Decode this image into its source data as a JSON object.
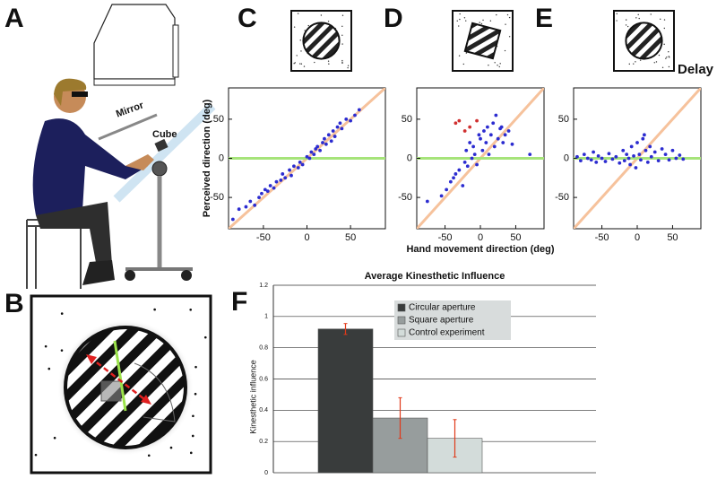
{
  "figure": {
    "panel_a": "A",
    "panel_b": "B",
    "mirror": "Mirror",
    "cube": "Cube"
  },
  "chart_data": [
    {
      "type": "scatter",
      "panel": "C",
      "ylabel": "Perceived direction (deg)",
      "xlim": [
        -90,
        90
      ],
      "ylim": [
        -90,
        90
      ],
      "xticks": [
        -50,
        0,
        50
      ],
      "yticks": [
        -50,
        0,
        50
      ],
      "reference_lines": [
        {
          "slope": 1,
          "intercept": 0,
          "color": "#f6c29c"
        },
        {
          "slope": 0,
          "intercept": 0,
          "color": "#a6e47a"
        }
      ],
      "series": [
        {
          "color": "#2c2cd0",
          "x": [
            -85,
            -78,
            -70,
            -65,
            -60,
            -55,
            -52,
            -48,
            -45,
            -42,
            -38,
            -35,
            -30,
            -28,
            -25,
            -20,
            -18,
            -15,
            -10,
            -8,
            -5,
            0,
            3,
            5,
            8,
            10,
            12,
            15,
            18,
            20,
            22,
            25,
            28,
            30,
            32,
            35,
            38,
            40,
            45,
            50,
            55,
            60
          ],
          "y": [
            -78,
            -65,
            -62,
            -55,
            -60,
            -50,
            -45,
            -40,
            -42,
            -35,
            -38,
            -30,
            -28,
            -20,
            -25,
            -15,
            -22,
            -10,
            -12,
            -5,
            -8,
            2,
            0,
            8,
            5,
            12,
            15,
            10,
            20,
            25,
            18,
            30,
            22,
            35,
            28,
            40,
            45,
            38,
            50,
            48,
            55,
            62
          ]
        }
      ]
    },
    {
      "type": "scatter",
      "panel": "D",
      "xlabel": "Hand movement direction (deg)",
      "xlim": [
        -90,
        90
      ],
      "ylim": [
        -90,
        90
      ],
      "xticks": [
        -50,
        0,
        50
      ],
      "yticks": [
        -50,
        0,
        50
      ],
      "reference_lines": [
        {
          "slope": 1,
          "intercept": 0,
          "color": "#f6c29c"
        },
        {
          "slope": 0,
          "intercept": 0,
          "color": "#a6e47a"
        }
      ],
      "series": [
        {
          "color": "#2c2cd0",
          "x": [
            -75,
            -55,
            -48,
            -42,
            -38,
            -35,
            -30,
            -25,
            -22,
            -20,
            -18,
            -15,
            -12,
            -10,
            -8,
            -5,
            -2,
            0,
            3,
            5,
            8,
            10,
            12,
            15,
            18,
            20,
            22,
            25,
            28,
            30,
            32,
            35,
            40,
            45,
            70
          ],
          "y": [
            -55,
            -48,
            -40,
            -30,
            -25,
            -20,
            -15,
            -35,
            -5,
            10,
            -10,
            20,
            0,
            15,
            5,
            -8,
            30,
            25,
            10,
            35,
            20,
            40,
            5,
            30,
            45,
            15,
            55,
            25,
            38,
            40,
            20,
            30,
            35,
            18,
            5
          ]
        },
        {
          "color": "#d03030",
          "x": [
            -35,
            -30,
            -22,
            -15,
            -5
          ],
          "y": [
            45,
            48,
            35,
            40,
            48
          ]
        }
      ]
    },
    {
      "type": "scatter",
      "panel": "E",
      "annotation": "Delay",
      "xlim": [
        -90,
        90
      ],
      "ylim": [
        -90,
        90
      ],
      "xticks": [
        -50,
        0,
        50
      ],
      "yticks": [
        -50,
        0,
        50
      ],
      "reference_lines": [
        {
          "slope": 1,
          "intercept": 0,
          "color": "#f6c29c"
        },
        {
          "slope": 0,
          "intercept": 0,
          "color": "#a6e47a"
        }
      ],
      "series": [
        {
          "color": "#2c2cd0",
          "x": [
            -85,
            -80,
            -75,
            -70,
            -65,
            -62,
            -58,
            -55,
            -50,
            -45,
            -40,
            -35,
            -30,
            -25,
            -20,
            -18,
            -15,
            -12,
            -10,
            -8,
            -5,
            -2,
            0,
            3,
            5,
            8,
            10,
            12,
            15,
            18,
            20,
            25,
            30,
            35,
            40,
            45,
            50,
            55,
            60,
            65
          ],
          "y": [
            2,
            -3,
            5,
            0,
            -2,
            8,
            -5,
            3,
            0,
            -4,
            6,
            -1,
            2,
            -6,
            10,
            -3,
            5,
            0,
            -8,
            15,
            3,
            -12,
            20,
            5,
            -2,
            25,
            30,
            10,
            -5,
            15,
            2,
            8,
            -3,
            12,
            5,
            -2,
            10,
            0,
            4,
            -1
          ]
        }
      ]
    },
    {
      "type": "bar",
      "panel": "F",
      "title": "Average Kinesthetic Influence",
      "ylabel": "Kinesthetic influence",
      "categories": [
        null
      ],
      "ylim": [
        0,
        1.2
      ],
      "yticks": [
        0,
        0.2,
        0.4,
        0.6,
        0.8,
        1,
        1.2
      ],
      "grid": true,
      "legend_position": "top-right",
      "error_color": "#e03a1a",
      "series": [
        {
          "name": "Circular aperture",
          "color": "#393c3c",
          "values": [
            0.92
          ],
          "errors": [
            0.035
          ]
        },
        {
          "name": "Square aperture",
          "color": "#979d9d",
          "values": [
            0.35
          ],
          "errors": [
            0.13
          ]
        },
        {
          "name": "Control experiment",
          "color": "#d3dcda",
          "values": [
            0.22
          ],
          "errors": [
            0.12
          ]
        }
      ]
    }
  ]
}
